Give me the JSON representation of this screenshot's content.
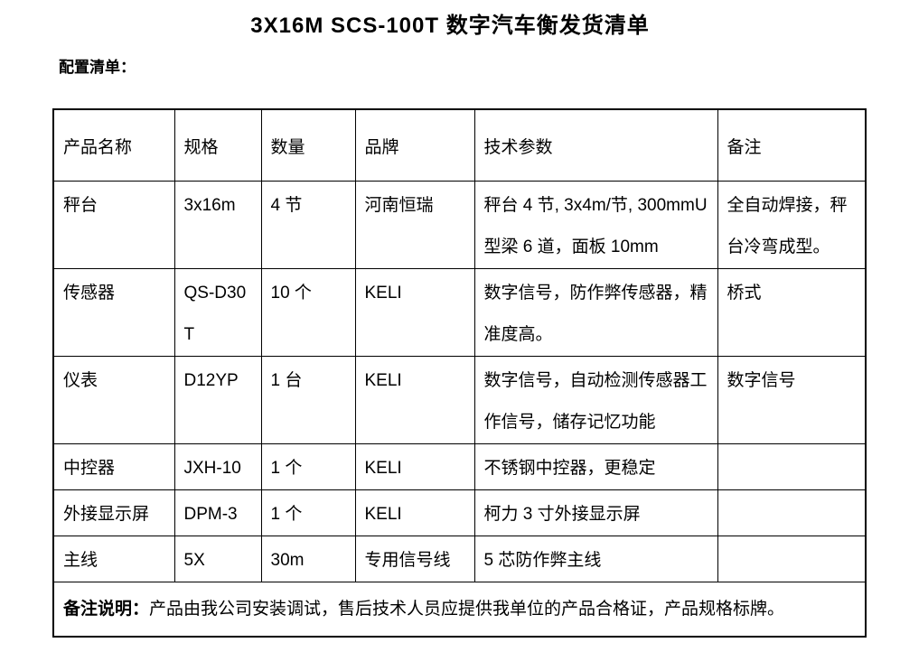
{
  "colors": {
    "text": "#000000",
    "background": "#ffffff",
    "border": "#000000"
  },
  "page": {
    "title": "3X16M SCS-100T 数字汽车衡发货清单",
    "section_label": "配置清单："
  },
  "table": {
    "headers": {
      "product": "产品名称",
      "spec": "规格",
      "qty": "数量",
      "brand": "品牌",
      "params": "技术参数",
      "note": "备注"
    },
    "rows": [
      {
        "product": "秤台",
        "spec": "3x16m",
        "qty": "4 节",
        "brand": "河南恒瑞",
        "params": "秤台 4 节, 3x4m/节, 300mmU型梁 6 道，面板 10mm",
        "note": "全自动焊接，秤台冷弯成型。"
      },
      {
        "product": "传感器",
        "spec": "QS-D30T",
        "qty": "10 个",
        "brand": "KELI",
        "params": "数字信号，防作弊传感器，精准度高。",
        "note": "桥式"
      },
      {
        "product": "仪表",
        "spec": "D12YP",
        "qty": "1 台",
        "brand": "KELI",
        "params": "数字信号，自动检测传感器工作信号，储存记忆功能",
        "note": "数字信号"
      },
      {
        "product": "中控器",
        "spec": "JXH-10",
        "qty": "1 个",
        "brand": "KELI",
        "params": "不锈钢中控器，更稳定",
        "note": ""
      },
      {
        "product": "外接显示屏",
        "spec": "DPM-3",
        "qty": "1 个",
        "brand": "KELI",
        "params": "柯力 3 寸外接显示屏",
        "note": ""
      },
      {
        "product": "主线",
        "spec": "5X",
        "qty": "30m",
        "brand": "专用信号线",
        "params": "5 芯防作弊主线",
        "note": ""
      }
    ],
    "footer": {
      "label": "备注说明：",
      "text": "产品由我公司安装调试，售后技术人员应提供我单位的产品合格证，产品规格标牌。"
    }
  }
}
